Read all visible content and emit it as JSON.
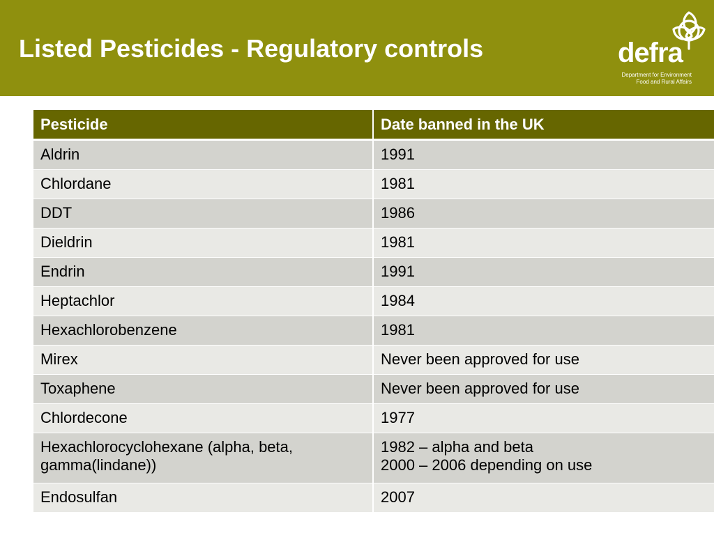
{
  "slide": {
    "title": "Listed Pesticides - Regulatory controls"
  },
  "logo": {
    "wordmark": "defra",
    "line1": "Department for Environment",
    "line2": "Food and Rural Affairs",
    "icon": "defra-knot-logo-icon"
  },
  "table": {
    "headers": [
      "Pesticide",
      "Date banned in the UK"
    ],
    "rows": [
      {
        "pesticide": [
          "Aldrin"
        ],
        "date": [
          "1991"
        ]
      },
      {
        "pesticide": [
          "Chlordane"
        ],
        "date": [
          "1981"
        ]
      },
      {
        "pesticide": [
          "DDT"
        ],
        "date": [
          "1986"
        ]
      },
      {
        "pesticide": [
          "Dieldrin"
        ],
        "date": [
          "1981"
        ]
      },
      {
        "pesticide": [
          "Endrin"
        ],
        "date": [
          "1991"
        ]
      },
      {
        "pesticide": [
          "Heptachlor"
        ],
        "date": [
          "1984"
        ]
      },
      {
        "pesticide": [
          "Hexachlorobenzene"
        ],
        "date": [
          "1981"
        ]
      },
      {
        "pesticide": [
          "Mirex"
        ],
        "date": [
          "Never been approved for use"
        ]
      },
      {
        "pesticide": [
          "Toxaphene"
        ],
        "date": [
          "Never been approved for use"
        ]
      },
      {
        "pesticide": [
          "Chlordecone"
        ],
        "date": [
          "1977"
        ]
      },
      {
        "pesticide": [
          "Hexachlorocyclohexane (alpha, beta,",
          "gamma(lindane))"
        ],
        "date": [
          "1982 – alpha and beta",
          "2000 – 2006 depending on use"
        ]
      },
      {
        "pesticide": [
          "Endosulfan"
        ],
        "date": [
          "2007"
        ]
      }
    ]
  },
  "colors": {
    "header_band": "#8f900e",
    "table_header": "#666600",
    "row_odd": "#d3d3ce",
    "row_even": "#e9e9e5",
    "text_light": "#ffffff"
  }
}
